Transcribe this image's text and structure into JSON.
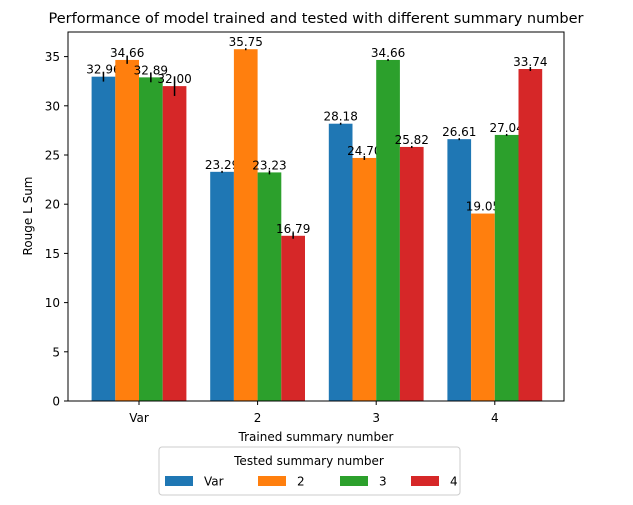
{
  "chart_data": {
    "type": "bar",
    "title": "Performance of model trained and tested with different summary number",
    "xlabel": "Trained summary number",
    "ylabel": "Rouge L Sum",
    "categories": [
      "Var",
      "2",
      "3",
      "4"
    ],
    "ylim": [
      0,
      37.5
    ],
    "yticks": [
      0,
      5,
      10,
      15,
      20,
      25,
      30,
      35
    ],
    "legend": {
      "title": "Tested  summary number",
      "placement": "bottom-center"
    },
    "series": [
      {
        "name": "Var",
        "color": "#1f77b4",
        "values": [
          32.96,
          23.29,
          28.18,
          26.61
        ],
        "labels": [
          "32.96",
          "23.29",
          "28.18",
          "26.61"
        ],
        "errors": [
          0.5,
          0.1,
          0.1,
          0.1
        ]
      },
      {
        "name": "2",
        "color": "#ff7f0e",
        "values": [
          34.66,
          35.75,
          24.7,
          19.05
        ],
        "labels": [
          "34.66",
          "35.75",
          "24.70",
          "19.05"
        ],
        "errors": [
          0.4,
          0.1,
          0.2,
          0.0
        ]
      },
      {
        "name": "3",
        "color": "#2ca02c",
        "values": [
          32.89,
          23.23,
          34.66,
          27.04
        ],
        "labels": [
          "32.89",
          "23.23",
          "34.66",
          "27.04"
        ],
        "errors": [
          0.5,
          0.2,
          0.1,
          0.1
        ]
      },
      {
        "name": "4",
        "color": "#d62728",
        "values": [
          32.0,
          16.79,
          25.82,
          33.74
        ],
        "labels": [
          "32.00",
          "16.79",
          "25.82",
          "33.74"
        ],
        "errors": [
          1.0,
          0.3,
          0.1,
          0.2
        ]
      }
    ]
  }
}
